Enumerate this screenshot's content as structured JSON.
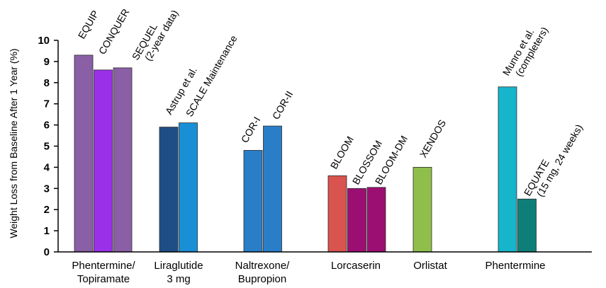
{
  "chart_data": {
    "type": "bar",
    "ylabel": "Weight Loss from Baseline After 1 Year (%)",
    "xlabel": "",
    "title": "",
    "ylim": [
      0,
      10
    ],
    "yticks": [
      0,
      1,
      2,
      3,
      4,
      5,
      6,
      7,
      8,
      9,
      10
    ],
    "grid": false,
    "groups": [
      {
        "category": [
          "Phentermine/",
          "Topiramate"
        ],
        "bars": [
          {
            "label": [
              "EQUIP"
            ],
            "value": 9.3,
            "color": "#8a5fa6"
          },
          {
            "label": [
              "CONQUER"
            ],
            "value": 8.6,
            "color": "#9a30e8"
          },
          {
            "label": [
              "SEQUEL",
              "(2-year data)"
            ],
            "value": 8.7,
            "color": "#8a5fa6"
          }
        ]
      },
      {
        "category": [
          "Liraglutide",
          "3 mg"
        ],
        "bars": [
          {
            "label": [
              "Astrup et al."
            ],
            "value": 5.9,
            "color": "#1f4e86"
          },
          {
            "label": [
              "SCALE Maintenance"
            ],
            "value": 6.1,
            "color": "#1a8fd6"
          }
        ]
      },
      {
        "category": [
          "Naltrexone/",
          "Bupropion"
        ],
        "bars": [
          {
            "label": [
              "COR-I"
            ],
            "value": 4.8,
            "color": "#2a7ec8"
          },
          {
            "label": [
              "COR-II"
            ],
            "value": 5.95,
            "color": "#2a7ec8"
          }
        ]
      },
      {
        "category": [
          "Lorcaserin"
        ],
        "bars": [
          {
            "label": [
              "BLOOM"
            ],
            "value": 3.6,
            "color": "#d9534f"
          },
          {
            "label": [
              "BLOSSOM"
            ],
            "value": 3.0,
            "color": "#9c0f72"
          },
          {
            "label": [
              "BLOOM-DM"
            ],
            "value": 3.05,
            "color": "#9c0f72"
          }
        ]
      },
      {
        "category": [
          "Orlistat"
        ],
        "bars": [
          {
            "label": [
              "XENDOS"
            ],
            "value": 4.0,
            "color": "#8fbf4a"
          }
        ]
      },
      {
        "category": [
          "Phentermine"
        ],
        "bars": [
          {
            "label": [
              "Munro et al.",
              "(completers)"
            ],
            "value": 7.8,
            "color": "#17b5cc"
          },
          {
            "label": [
              "EQUATE",
              "(15 mg, 24 weeks)"
            ],
            "value": 2.5,
            "color": "#0e7f78"
          }
        ]
      }
    ]
  }
}
